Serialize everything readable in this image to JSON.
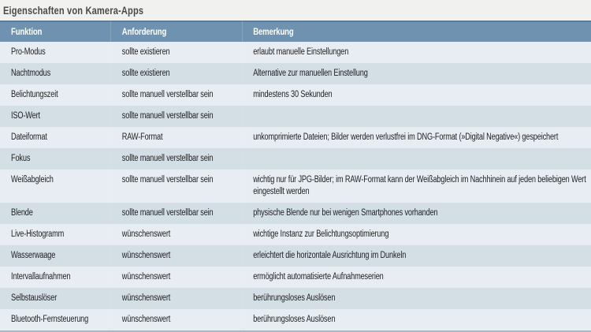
{
  "title": "Eigenschaften von Kamera-Apps",
  "table": {
    "columns": [
      "Funktion",
      "Anforderung",
      "Bemerkung"
    ],
    "rows": [
      {
        "funktion": "Pro-Modus",
        "anforderung": "sollte existieren",
        "bemerkung": "erlaubt manuelle Einstellungen"
      },
      {
        "funktion": "Nachtmodus",
        "anforderung": "sollte existieren",
        "bemerkung": "Alternative zur manuellen Einstellung"
      },
      {
        "funktion": "Belichtungszeit",
        "anforderung": "sollte manuell verstellbar sein",
        "bemerkung": "mindestens 30 Sekunden"
      },
      {
        "funktion": "ISO-Wert",
        "anforderung": "sollte manuell verstellbar sein",
        "bemerkung": ""
      },
      {
        "funktion": "Dateiformat",
        "anforderung": "RAW-Format",
        "bemerkung": "unkomprimierte Dateien; Bilder werden verlustfrei im DNG-Format (»Digital Negative«) gespeichert"
      },
      {
        "funktion": "Fokus",
        "anforderung": "sollte manuell verstellbar sein",
        "bemerkung": ""
      },
      {
        "funktion": "Weißabgleich",
        "anforderung": "sollte manuell verstellbar sein",
        "bemerkung": "wichtig nur für JPG-Bilder; im RAW-Format kann der Weißabgleich im Nachhinein auf jeden beliebigen Wert eingestellt werden"
      },
      {
        "funktion": "Blende",
        "anforderung": "sollte manuell verstellbar sein",
        "bemerkung": "physische Blende nur bei wenigen Smartphones vorhanden"
      },
      {
        "funktion": "Live-Histogramm",
        "anforderung": "wünschenswert",
        "bemerkung": "wichtige Instanz zur Belichtungsoptimierung"
      },
      {
        "funktion": "Wasserwaage",
        "anforderung": "wünschenswert",
        "bemerkung": "erleichtert die horizontale Ausrichtung im Dunkeln"
      },
      {
        "funktion": "Intervallaufnahmen",
        "anforderung": "wünschenswert",
        "bemerkung": "ermöglicht automatisierte Aufnahmeserien"
      },
      {
        "funktion": "Selbstauslöser",
        "anforderung": "wünschenswert",
        "bemerkung": "berührungsloses Auslösen"
      },
      {
        "funktion": "Bluetooth-Fernsteuerung",
        "anforderung": "wünschenswert",
        "bemerkung": "berührungsloses Auslösen"
      }
    ]
  },
  "colors": {
    "page_bg": "#f1f1ef",
    "header_bg": "#6e92b0",
    "header_border_top": "#587d9d",
    "header_text": "#ffffff",
    "row_light": "#e8edf4",
    "row_dark": "#d3dee5",
    "bottom_border": "#a3b8c2",
    "title_text": "#4a4a4a",
    "body_text": "#1f1f1f"
  }
}
